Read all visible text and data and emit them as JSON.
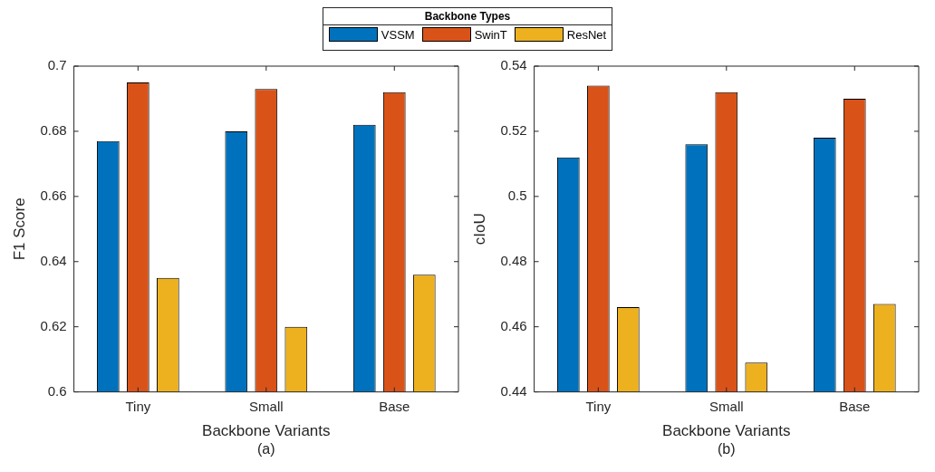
{
  "chart_data": [
    {
      "type": "bar",
      "categories": [
        "Tiny",
        "Small",
        "Base"
      ],
      "xlabel": "Backbone Variants",
      "ylabel": "F1 Score",
      "ylim": [
        0.6,
        0.7
      ],
      "yticks": [
        0.6,
        0.62,
        0.64,
        0.66,
        0.68,
        0.7
      ],
      "grid": false,
      "legend": "top",
      "legend_title": "Backbone Types",
      "annotations": [
        "(a)"
      ],
      "series": [
        {
          "name": "VSSM",
          "color": "#0072bd",
          "values": [
            0.677,
            0.68,
            0.682
          ]
        },
        {
          "name": "SwinT",
          "color": "#d95319",
          "values": [
            0.695,
            0.693,
            0.692
          ]
        },
        {
          "name": "ResNet",
          "color": "#edb120",
          "values": [
            0.635,
            0.62,
            0.636
          ]
        }
      ]
    },
    {
      "type": "bar",
      "categories": [
        "Tiny",
        "Small",
        "Base"
      ],
      "xlabel": "Backbone Variants",
      "ylabel": "cIoU",
      "ylim": [
        0.44,
        0.54
      ],
      "yticks": [
        0.44,
        0.46,
        0.48,
        0.5,
        0.52,
        0.54
      ],
      "grid": false,
      "annotations": [
        "(b)"
      ],
      "series": [
        {
          "color": "#0072bd",
          "values": [
            0.512,
            0.516,
            0.518
          ]
        },
        {
          "color": "#d95319",
          "values": [
            0.534,
            0.532,
            0.53
          ]
        },
        {
          "color": "#edb120",
          "values": [
            0.466,
            0.449,
            0.467
          ]
        }
      ]
    }
  ]
}
